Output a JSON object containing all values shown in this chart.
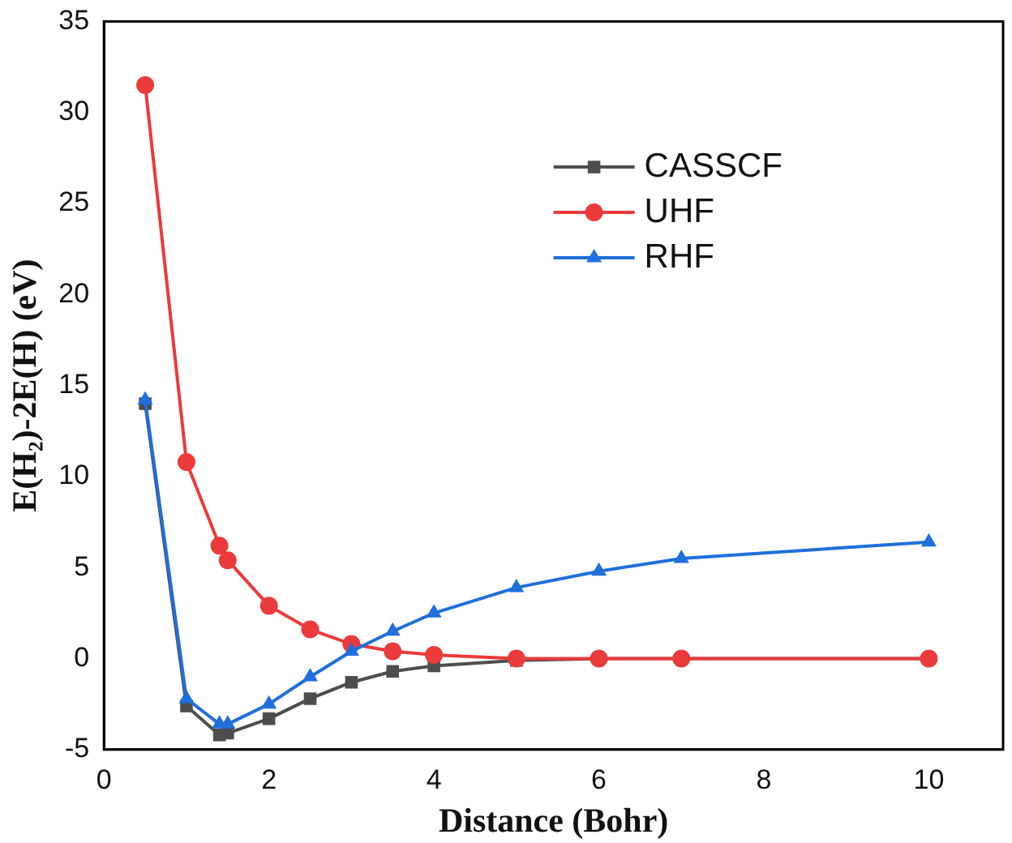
{
  "chart_data": {
    "type": "line",
    "xlabel": "Distance (Bohr)",
    "ylabel": "E(H₂)-2E(H) (eV)",
    "x": [
      0.5,
      1,
      1.4,
      1.5,
      2,
      2.5,
      3,
      3.5,
      4,
      5,
      6,
      7,
      10
    ],
    "series": [
      {
        "name": "CASSCF",
        "color": "#4d4d4d",
        "marker": "square",
        "values": [
          14,
          -2.6,
          -4.2,
          -4.1,
          -3.3,
          -2.2,
          -1.3,
          -0.7,
          -0.4,
          -0.1,
          0,
          0,
          0
        ]
      },
      {
        "name": "UHF",
        "color": "#eb3a3a",
        "marker": "circle",
        "values": [
          31.5,
          10.8,
          6.2,
          5.4,
          2.9,
          1.6,
          0.8,
          0.4,
          0.2,
          0,
          0,
          0,
          0
        ]
      },
      {
        "name": "RHF",
        "color": "#1f6fdc",
        "marker": "triangle",
        "values": [
          14.2,
          -2.2,
          -3.6,
          -3.6,
          -2.5,
          -1,
          0.4,
          1.5,
          2.5,
          3.9,
          4.8,
          5.5,
          6.4
        ]
      }
    ],
    "xlim": [
      0,
      10.9
    ],
    "xticks": [
      0,
      2,
      4,
      6,
      8,
      10
    ],
    "ylim": [
      -5,
      35
    ],
    "yticks": [
      -5,
      0,
      5,
      10,
      15,
      20,
      25,
      30,
      35
    ],
    "grid": false,
    "legend": "top right",
    "line_style": "solid"
  }
}
